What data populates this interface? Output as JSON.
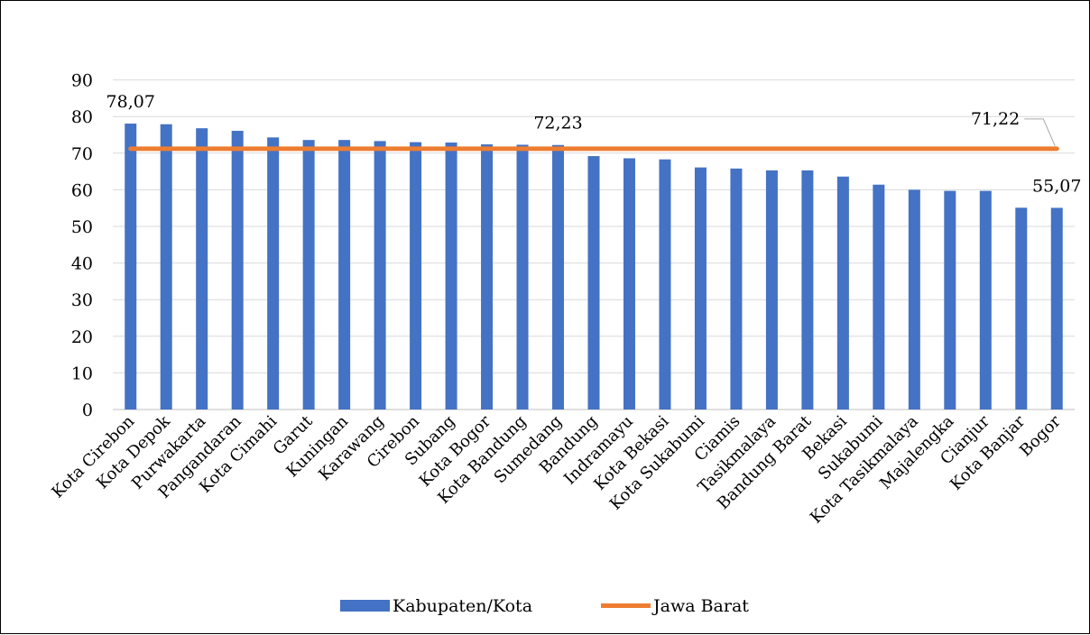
{
  "chart_data": {
    "type": "bar",
    "title": "",
    "xlabel": "",
    "ylabel": "",
    "ylim": [
      0,
      90
    ],
    "yticks": [
      0,
      10,
      20,
      30,
      40,
      50,
      60,
      70,
      80,
      90
    ],
    "grid": true,
    "legend_position": "bottom",
    "categories": [
      "Kota Cirebon",
      "Kota Depok",
      "Purwakarta",
      "Pangandaran",
      "Kota Cimahi",
      "Garut",
      "Kuningan",
      "Karawang",
      "Cirebon",
      "Subang",
      "Kota Bogor",
      "Kota Bandung",
      "Sumedang",
      "Bandung",
      "Indramayu",
      "Kota Bekasi",
      "Kota Sukabumi",
      "Ciamis",
      "Tasikmalaya",
      "Bandung Barat",
      "Bekasi",
      "Sukabumi",
      "Kota Tasikmalaya",
      "Majalengka",
      "Cianjur",
      "Kota Banjar",
      "Bogor"
    ],
    "series": [
      {
        "name": "Kabupaten/Kota",
        "type": "bar",
        "color": "#4472C4",
        "values": [
          78.07,
          77.9,
          76.8,
          76.1,
          74.3,
          73.6,
          73.6,
          73.3,
          73.0,
          72.9,
          72.4,
          72.3,
          72.23,
          69.2,
          68.6,
          68.3,
          66.1,
          65.8,
          65.3,
          65.3,
          63.6,
          61.4,
          60.0,
          59.7,
          59.7,
          55.1,
          55.07
        ],
        "labels": [
          {
            "category": "Kota Cirebon",
            "text": "78,07"
          },
          {
            "category": "Sumedang",
            "text": "72,23"
          },
          {
            "category": "Bogor",
            "text": "55,07"
          }
        ]
      },
      {
        "name": "Jawa Barat",
        "type": "line",
        "color": "#ED7D31",
        "value": 71.22,
        "label": "71,22"
      }
    ]
  }
}
